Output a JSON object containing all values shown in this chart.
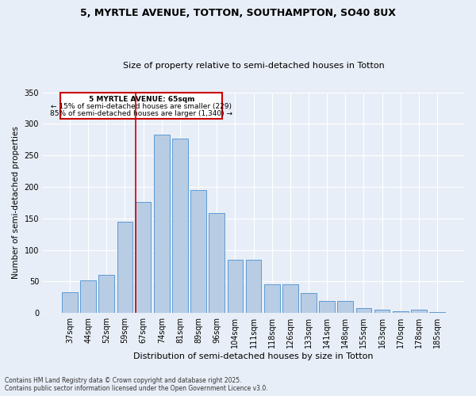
{
  "title1": "5, MYRTLE AVENUE, TOTTON, SOUTHAMPTON, SO40 8UX",
  "title2": "Size of property relative to semi-detached houses in Totton",
  "xlabel": "Distribution of semi-detached houses by size in Totton",
  "ylabel": "Number of semi-detached properties",
  "categories": [
    "37sqm",
    "44sqm",
    "52sqm",
    "59sqm",
    "67sqm",
    "74sqm",
    "81sqm",
    "89sqm",
    "96sqm",
    "104sqm",
    "111sqm",
    "118sqm",
    "126sqm",
    "133sqm",
    "141sqm",
    "148sqm",
    "155sqm",
    "163sqm",
    "170sqm",
    "178sqm",
    "185sqm"
  ],
  "values": [
    33,
    52,
    61,
    145,
    176,
    283,
    277,
    195,
    158,
    85,
    85,
    46,
    46,
    32,
    19,
    19,
    8,
    5,
    3,
    5,
    2
  ],
  "bar_color": "#b8cce4",
  "bar_edge_color": "#5b9bd5",
  "property_line_idx": 4,
  "property_label": "5 MYRTLE AVENUE: 65sqm",
  "annotation_line1": "← 15% of semi-detached houses are smaller (229)",
  "annotation_line2": "85% of semi-detached houses are larger (1,340) →",
  "line_color": "#cc0000",
  "box_color": "#cc0000",
  "background_color": "#e8eef7",
  "footer1": "Contains HM Land Registry data © Crown copyright and database right 2025.",
  "footer2": "Contains public sector information licensed under the Open Government Licence v3.0.",
  "ylim": [
    0,
    350
  ],
  "yticks": [
    0,
    50,
    100,
    150,
    200,
    250,
    300,
    350
  ]
}
